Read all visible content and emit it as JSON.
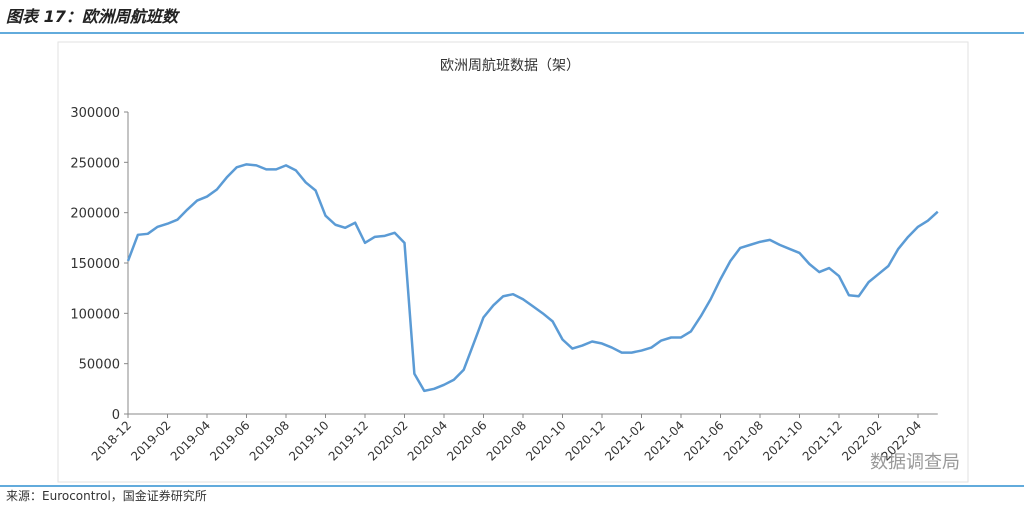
{
  "header": {
    "title": "图表 17：欧洲周航班数"
  },
  "chart_data": {
    "type": "line",
    "title": "欧洲周航班数据（架）",
    "categories": [
      "2018-12",
      null,
      null,
      null,
      "2019-02",
      null,
      null,
      null,
      "2019-04",
      null,
      null,
      null,
      "2019-06",
      null,
      null,
      null,
      "2019-08",
      null,
      null,
      null,
      "2019-10",
      null,
      null,
      null,
      "2019-12",
      null,
      null,
      null,
      "2020-02",
      null,
      null,
      null,
      "2020-04",
      null,
      null,
      null,
      "2020-06",
      null,
      null,
      null,
      "2020-08",
      null,
      null,
      null,
      "2020-10",
      null,
      null,
      null,
      "2020-12",
      null,
      null,
      null,
      "2021-02",
      null,
      null,
      null,
      "2021-04",
      null,
      null,
      null,
      "2021-06",
      null,
      null,
      null,
      "2021-08",
      null,
      null,
      null,
      "2021-10",
      null,
      null,
      null,
      "2021-12",
      null,
      null,
      null,
      "2022-02",
      null,
      null,
      null,
      "2022-04",
      null,
      null
    ],
    "series": [
      {
        "name": "欧洲周航班数",
        "color": "#5b9bd5",
        "values": [
          152000,
          178000,
          179000,
          186000,
          189000,
          193000,
          203000,
          212000,
          216000,
          223000,
          235000,
          245000,
          248000,
          247000,
          243000,
          243000,
          247000,
          242000,
          230000,
          222000,
          197000,
          188000,
          185000,
          190000,
          170000,
          176000,
          177000,
          180000,
          170000,
          40000,
          23000,
          25000,
          29000,
          34000,
          44000,
          70000,
          96000,
          108000,
          117000,
          119000,
          114000,
          107000,
          100000,
          92000,
          74000,
          65000,
          68000,
          72000,
          70000,
          66000,
          61000,
          61000,
          63000,
          66000,
          73000,
          76000,
          76000,
          82000,
          97000,
          114000,
          134000,
          152000,
          165000,
          168000,
          171000,
          173000,
          168000,
          164000,
          160000,
          149000,
          141000,
          145000,
          137000,
          118000,
          117000,
          131000,
          139000,
          147000,
          164000,
          176000,
          186000,
          192000,
          201000
        ]
      }
    ],
    "ylim": [
      0,
      300000
    ],
    "yticks": [
      0,
      50000,
      100000,
      150000,
      200000,
      250000,
      300000
    ]
  },
  "footer": {
    "source": "来源：Eurocontrol，国金证券研究所",
    "watermark": "数据调查局"
  }
}
